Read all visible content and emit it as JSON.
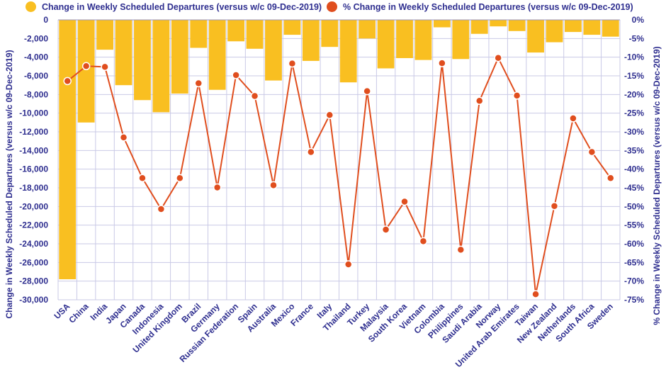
{
  "chart_data": {
    "type": "bar+line",
    "categories": [
      "USA",
      "China",
      "India",
      "Japan",
      "Canada",
      "Indonesia",
      "United Kingdom",
      "Brazil",
      "Germany",
      "Russian Federation",
      "Spain",
      "Australia",
      "Mexico",
      "France",
      "Italy",
      "Thailand",
      "Turkey",
      "Malaysia",
      "South Korea",
      "Vietnam",
      "Colombia",
      "Philippines",
      "Saudi Arabia",
      "Norway",
      "United Arab Emirates",
      "Taiwan",
      "New Zealand",
      "Netherlands",
      "South Africa",
      "Sweden"
    ],
    "series": [
      {
        "name": "Change in Weekly Scheduled Departures (versus w/c 09-Dec-2019)",
        "type": "bar",
        "axis": "left",
        "color": "#f9bf21",
        "values": [
          -27800,
          -11000,
          -3200,
          -7000,
          -8600,
          -9900,
          -7900,
          -3000,
          -7500,
          -2300,
          -3100,
          -6500,
          -1600,
          -4400,
          -2900,
          -6700,
          -2000,
          -5200,
          -4100,
          -4300,
          -800,
          -4200,
          -1500,
          -700,
          -1200,
          -3500,
          -2400,
          -1300,
          -1600,
          -1800
        ]
      },
      {
        "name": "% Change in Weekly Scheduled Departures (versus w/c 09-Dec-2019)",
        "type": "line",
        "axis": "right",
        "color": "#e04e1e",
        "values": [
          -16.4,
          -12.4,
          -12.6,
          -31.5,
          -42.4,
          -50.7,
          -42.4,
          -17,
          -44.9,
          -14.8,
          -20.4,
          -44.3,
          -11.7,
          -35.4,
          -25.5,
          -65.5,
          -19.1,
          -56.2,
          -48.7,
          -59.3,
          -11.6,
          -61.6,
          -21.7,
          -10.2,
          -20.3,
          -73.5,
          -49.9,
          -26.4,
          -35.4,
          -42.4
        ]
      }
    ],
    "ylabel_left": "Change in Weekly Scheduled Departures (versus w/c 09-Dec-2019)",
    "ylabel_right": "% Change in Weekly Scheduled Departures (versus w/c 09-Dec-2019)",
    "ylim_left": [
      -30000,
      0
    ],
    "ylim_right": [
      -75,
      0
    ],
    "yticks_left": [
      "0",
      "-2,000",
      "-4,000",
      "-6,000",
      "-8,000",
      "-10,000",
      "-12,000",
      "-14,000",
      "-16,000",
      "-18,000",
      "-20,000",
      "-22,000",
      "-24,000",
      "-26,000",
      "-28,000",
      "-30,000"
    ],
    "yticks_right": [
      "0%",
      "-5%",
      "-10%",
      "-15%",
      "-20%",
      "-25%",
      "-30%",
      "-35%",
      "-40%",
      "-45%",
      "-50%",
      "-55%",
      "-60%",
      "-65%",
      "-70%",
      "-75%"
    ],
    "grid": true,
    "legend_position": "top"
  }
}
